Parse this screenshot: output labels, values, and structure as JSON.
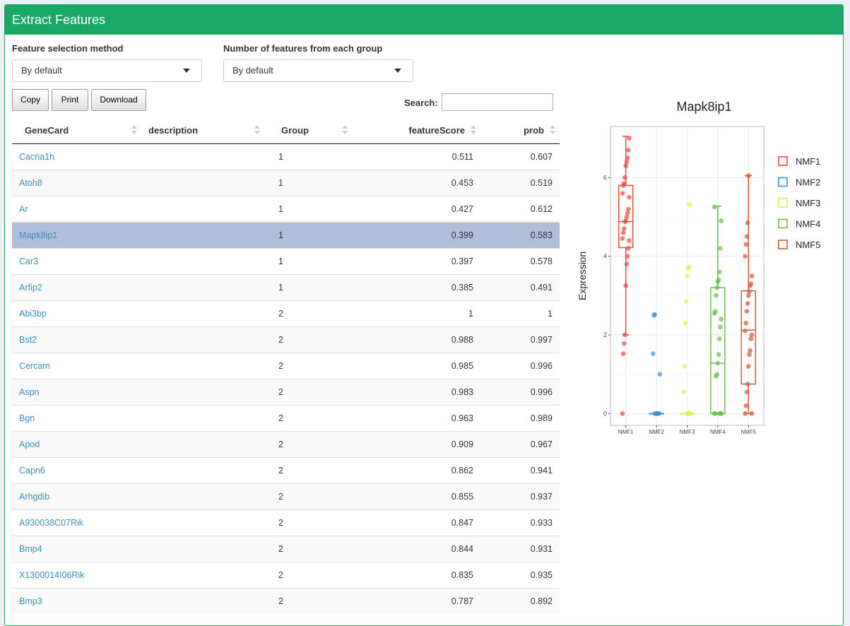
{
  "header": {
    "title": "Extract Features"
  },
  "controls": {
    "method_label": "Feature selection method",
    "method_value": "By default",
    "number_label": "Number of features from each group",
    "number_value": "By default"
  },
  "buttons": {
    "copy": "Copy",
    "print": "Print",
    "download": "Download"
  },
  "search": {
    "label": "Search:",
    "value": ""
  },
  "table": {
    "columns": [
      "GeneCard",
      "description",
      "Group",
      "featureScore",
      "prob"
    ],
    "selected_row": 3,
    "rows": [
      {
        "gene": "Cacna1h",
        "description": "",
        "group": "1",
        "score": "0.511",
        "prob": "0.607"
      },
      {
        "gene": "Atoh8",
        "description": "",
        "group": "1",
        "score": "0.453",
        "prob": "0.519"
      },
      {
        "gene": "Ar",
        "description": "",
        "group": "1",
        "score": "0.427",
        "prob": "0.612"
      },
      {
        "gene": "Mapk8ip1",
        "description": "",
        "group": "1",
        "score": "0.399",
        "prob": "0.583"
      },
      {
        "gene": "Car3",
        "description": "",
        "group": "1",
        "score": "0.397",
        "prob": "0.578"
      },
      {
        "gene": "Arfip2",
        "description": "",
        "group": "1",
        "score": "0.385",
        "prob": "0.491"
      },
      {
        "gene": "Abi3bp",
        "description": "",
        "group": "2",
        "score": "1",
        "prob": "1"
      },
      {
        "gene": "Bst2",
        "description": "",
        "group": "2",
        "score": "0.988",
        "prob": "0.997"
      },
      {
        "gene": "Cercam",
        "description": "",
        "group": "2",
        "score": "0.985",
        "prob": "0.996"
      },
      {
        "gene": "Aspn",
        "description": "",
        "group": "2",
        "score": "0.983",
        "prob": "0.996"
      },
      {
        "gene": "Bgn",
        "description": "",
        "group": "2",
        "score": "0.963",
        "prob": "0.989"
      },
      {
        "gene": "Apod",
        "description": "",
        "group": "2",
        "score": "0.909",
        "prob": "0.967"
      },
      {
        "gene": "Capn6",
        "description": "",
        "group": "2",
        "score": "0.862",
        "prob": "0.941"
      },
      {
        "gene": "Arhgdib",
        "description": "",
        "group": "2",
        "score": "0.855",
        "prob": "0.937"
      },
      {
        "gene": "A930038C07Rik",
        "description": "",
        "group": "2",
        "score": "0.847",
        "prob": "0.933"
      },
      {
        "gene": "Bmp4",
        "description": "",
        "group": "2",
        "score": "0.844",
        "prob": "0.931"
      },
      {
        "gene": "X1300014I06Rik",
        "description": "",
        "group": "2",
        "score": "0.835",
        "prob": "0.935"
      },
      {
        "gene": "Bmp3",
        "description": "",
        "group": "2",
        "score": "0.787",
        "prob": "0.892"
      }
    ]
  },
  "chart_data": {
    "type": "boxplot",
    "title": "Mapk8ip1",
    "xlabel": "",
    "ylabel": "Expression",
    "ylim": [
      -0.3,
      7.3
    ],
    "yticks": [
      0,
      2,
      4,
      6
    ],
    "categories": [
      "NMF1",
      "NMF2",
      "NMF3",
      "NMF4",
      "NMF5"
    ],
    "legend_position": "right",
    "colors": [
      "#e8483a",
      "#3a8fcf",
      "#e9e84a",
      "#6abb4a",
      "#cc5a2e"
    ],
    "series": [
      {
        "name": "NMF1",
        "q1": 4.22,
        "median": 4.88,
        "q3": 5.8,
        "whisker_low": 2.0,
        "whisker_high": 7.05,
        "points": [
          0,
          1.52,
          1.78,
          2.0,
          3.25,
          3.8,
          4.0,
          4.2,
          4.4,
          4.45,
          4.6,
          4.7,
          4.88,
          4.9,
          5.0,
          5.1,
          5.2,
          5.5,
          5.6,
          5.8,
          5.85,
          6.0,
          6.3,
          6.4,
          6.5,
          6.7,
          7.0
        ]
      },
      {
        "name": "NMF2",
        "q1": 0,
        "median": 0,
        "q3": 0,
        "whisker_low": 0,
        "whisker_high": 0,
        "points": [
          0,
          0,
          0,
          0,
          0,
          0,
          1.0,
          1.52,
          2.5,
          2.52
        ]
      },
      {
        "name": "NMF3",
        "q1": 0,
        "median": 0,
        "q3": 0,
        "whisker_low": 0,
        "whisker_high": 0,
        "points": [
          0,
          0,
          0,
          0,
          0,
          0.55,
          1.2,
          2.3,
          2.85,
          3.5,
          3.7,
          3.72,
          5.32
        ]
      },
      {
        "name": "NMF4",
        "q1": 0,
        "median": 1.28,
        "q3": 3.2,
        "whisker_low": 0,
        "whisker_high": 5.27,
        "points": [
          0,
          0,
          0,
          0,
          0,
          0.95,
          1.0,
          1.28,
          1.5,
          1.9,
          2.2,
          2.4,
          2.55,
          2.6,
          3.0,
          3.2,
          3.35,
          3.4,
          3.6,
          4.2,
          4.9,
          5.25
        ]
      },
      {
        "name": "NMF5",
        "q1": 0.75,
        "median": 2.12,
        "q3": 3.12,
        "whisker_low": 0,
        "whisker_high": 6.05,
        "points": [
          0,
          0,
          0.2,
          0.55,
          0.75,
          1.2,
          1.5,
          1.6,
          1.9,
          2.0,
          2.1,
          2.3,
          2.6,
          2.8,
          3.0,
          3.1,
          3.25,
          3.3,
          3.5,
          4.0,
          4.3,
          4.5,
          4.85,
          6.05
        ]
      }
    ]
  }
}
